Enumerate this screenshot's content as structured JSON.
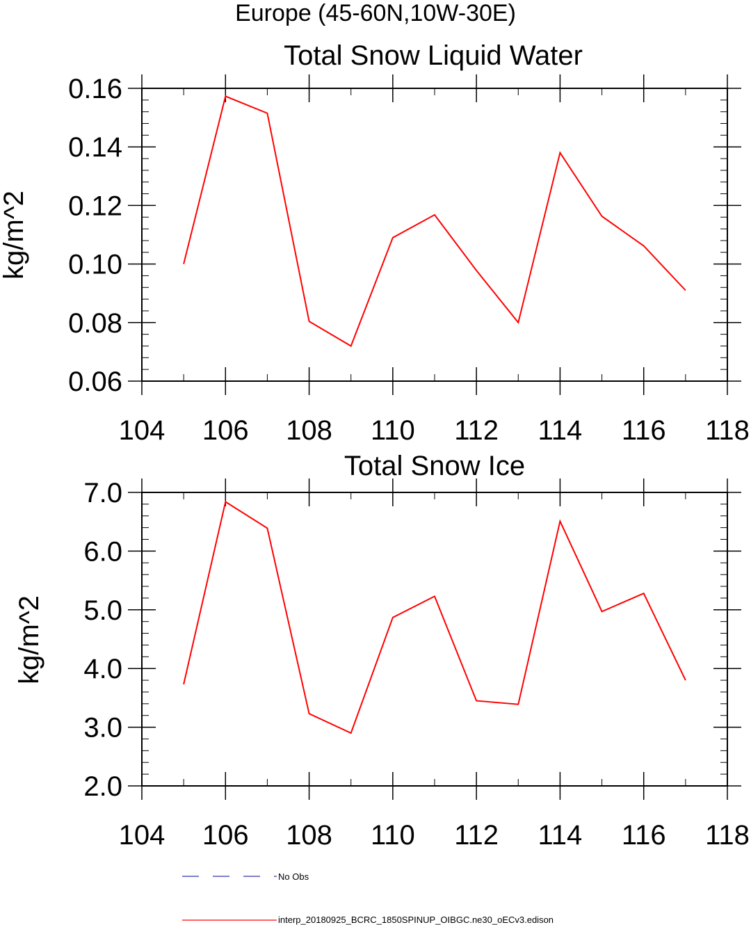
{
  "page_title": "Europe (45-60N,10W-30E)",
  "chart_data": [
    {
      "type": "line",
      "title": "Total Snow Liquid Water",
      "xlabel": "",
      "ylabel": "kg/m^2",
      "xlim": [
        104,
        118
      ],
      "ylim": [
        0.06,
        0.16
      ],
      "grid": false,
      "x_ticks": [
        104,
        106,
        108,
        110,
        112,
        114,
        116,
        118
      ],
      "x_tick_labels": [
        "104",
        "106",
        "108",
        "110",
        "112",
        "114",
        "116",
        "118"
      ],
      "y_ticks": [
        0.06,
        0.08,
        0.1,
        0.12,
        0.14,
        0.16
      ],
      "y_tick_labels": [
        "0.06",
        "0.08",
        "0.10",
        "0.12",
        "0.14",
        "0.16"
      ],
      "y_minor_step": 0.004,
      "x_minor_step": 1,
      "series": [
        {
          "color": "#ff0000",
          "x": [
            105,
            106,
            107,
            108,
            109,
            110,
            111,
            112,
            113,
            114,
            115,
            116,
            117
          ],
          "values": [
            0.1,
            0.1573,
            0.1515,
            0.0804,
            0.072,
            0.109,
            0.1168,
            0.0978,
            0.08,
            0.138,
            0.1163,
            0.1062,
            0.091
          ]
        }
      ]
    },
    {
      "type": "line",
      "title": "Total Snow Ice",
      "xlabel": "",
      "ylabel": "kg/m^2",
      "xlim": [
        104,
        118
      ],
      "ylim": [
        2.0,
        7.0
      ],
      "grid": false,
      "x_ticks": [
        104,
        106,
        108,
        110,
        112,
        114,
        116,
        118
      ],
      "x_tick_labels": [
        "104",
        "106",
        "108",
        "110",
        "112",
        "114",
        "116",
        "118"
      ],
      "y_ticks": [
        2.0,
        3.0,
        4.0,
        5.0,
        6.0,
        7.0
      ],
      "y_tick_labels": [
        "2.0",
        "3.0",
        "4.0",
        "5.0",
        "6.0",
        "7.0"
      ],
      "y_minor_step": 0.2,
      "x_minor_step": 1,
      "series": [
        {
          "color": "#ff0000",
          "x": [
            105,
            106,
            107,
            108,
            109,
            110,
            111,
            112,
            113,
            114,
            115,
            116,
            117
          ],
          "values": [
            3.73,
            6.84,
            6.39,
            3.23,
            2.9,
            4.87,
            5.23,
            3.45,
            3.39,
            6.51,
            4.97,
            5.28,
            3.8
          ]
        }
      ]
    }
  ],
  "legend": {
    "placement": "bottom",
    "items": [
      {
        "label": "No Obs",
        "color": "#3333aa",
        "style": "dashed"
      },
      {
        "label": "interp_20180925_BCRC_1850SPINUP_OIBGC.ne30_oECv3.edison",
        "color": "#ff0000",
        "style": "solid"
      }
    ]
  }
}
